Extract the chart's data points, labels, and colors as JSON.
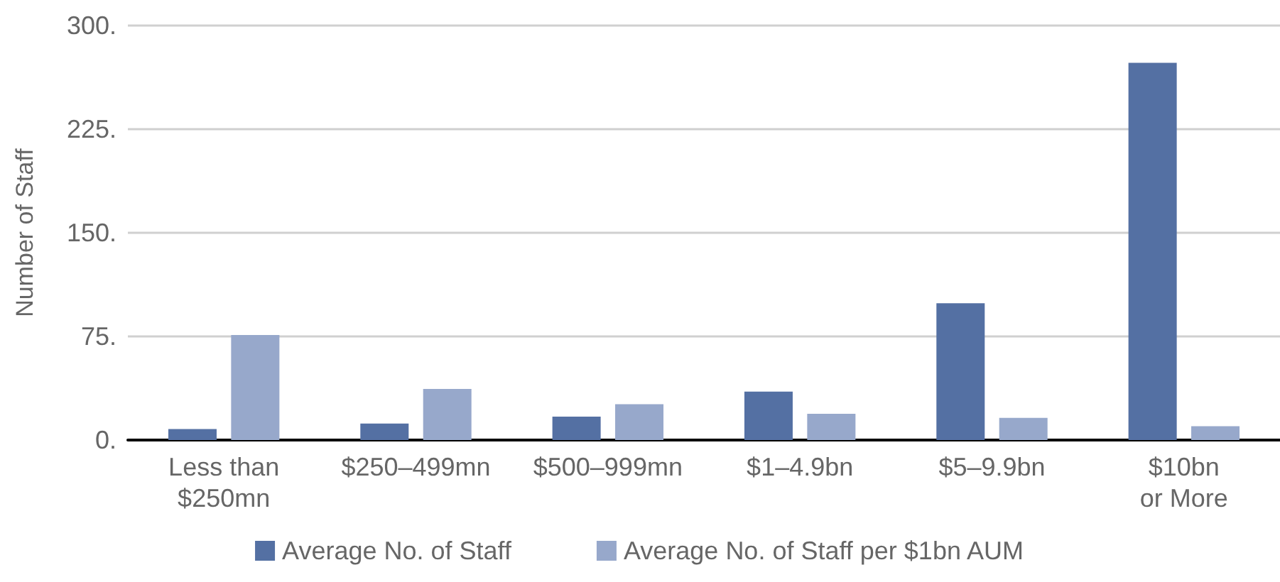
{
  "chart_data": {
    "type": "bar",
    "ylabel": "Number of Staff",
    "categories": [
      "Less than\n$250mn",
      "$250–499mn",
      "$500–999mn",
      "$1–4.9bn",
      "$5–9.9bn",
      "$10bn\nor More"
    ],
    "series": [
      {
        "name": "Average No. of Staff",
        "color": "#5470a3",
        "values": [
          8,
          12,
          17,
          35,
          99,
          273
        ]
      },
      {
        "name": "Average No. of Staff per $1bn AUM",
        "color": "#97a8cb",
        "values": [
          76,
          37,
          26,
          19,
          16,
          10
        ]
      }
    ],
    "ylim": [
      0,
      300
    ],
    "yticks": [
      {
        "value": 0,
        "label": "0."
      },
      {
        "value": 75,
        "label": "75."
      },
      {
        "value": 150,
        "label": "150."
      },
      {
        "value": 225,
        "label": "225."
      },
      {
        "value": 300,
        "label": "300."
      }
    ],
    "grid": "y",
    "legend": "bottom"
  }
}
